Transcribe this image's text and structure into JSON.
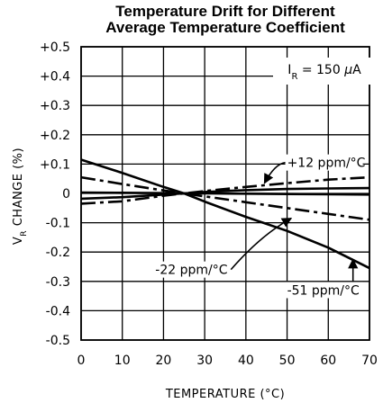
{
  "chart_data": {
    "type": "line",
    "title": [
      "Temperature Drift for Different",
      "Average Temperature Coefficient"
    ],
    "xlabel": "TEMPERATURE (°C)",
    "ylabel": "V_R CHANGE (%)",
    "xlim": [
      0,
      70
    ],
    "ylim": [
      -0.5,
      0.5
    ],
    "x_ticks": [
      0,
      10,
      20,
      30,
      40,
      50,
      60,
      70
    ],
    "y_ticks": [
      0.5,
      0.4,
      0.3,
      0.2,
      0.1,
      0,
      -0.1,
      -0.2,
      -0.3,
      -0.4,
      -0.5
    ],
    "y_tick_labels": [
      "+0.5",
      "+0.4",
      "+0.3",
      "+0.2",
      "+0.1",
      "0",
      "-0.1",
      "-0.2",
      "-0.3",
      "-0.4",
      "-0.5"
    ],
    "grid": true,
    "condition_label": "I_R = 150 μA",
    "series": [
      {
        "name": "+12 ppm/°C",
        "style": "dashdot",
        "x": [
          0,
          10,
          20,
          25,
          30,
          40,
          50,
          60,
          70
        ],
        "y": [
          -0.035,
          -0.027,
          -0.008,
          0.0,
          0.008,
          0.022,
          0.035,
          0.047,
          0.055
        ]
      },
      {
        "style": "solid",
        "x": [
          0,
          10,
          20,
          25,
          30,
          40,
          50,
          60,
          70
        ],
        "y": [
          -0.018,
          -0.013,
          -0.004,
          0.0,
          0.005,
          0.011,
          0.015,
          0.017,
          0.018
        ]
      },
      {
        "style": "solid",
        "x": [
          0,
          10,
          20,
          25,
          30,
          40,
          50,
          60,
          70
        ],
        "y": [
          0.003,
          0.002,
          0.001,
          0.0,
          0.0,
          -0.001,
          -0.002,
          -0.003,
          -0.004
        ]
      },
      {
        "name": "-22 ppm/°C",
        "style": "dashdot",
        "x": [
          0,
          10,
          20,
          25,
          30,
          40,
          50,
          60,
          70
        ],
        "y": [
          0.055,
          0.032,
          0.01,
          0.0,
          -0.01,
          -0.03,
          -0.05,
          -0.07,
          -0.09
        ]
      },
      {
        "name": "-51 ppm/°C",
        "style": "solid",
        "x": [
          0,
          10,
          20,
          25,
          30,
          40,
          50,
          60,
          70
        ],
        "y": [
          0.115,
          0.07,
          0.022,
          0.0,
          -0.028,
          -0.08,
          -0.128,
          -0.185,
          -0.255
        ]
      }
    ],
    "annotations": [
      {
        "text": "+12 ppm/°C",
        "x": 50,
        "y": 0.09,
        "arrow_to": [
          44.5,
          0.035
        ]
      },
      {
        "text": "-22 ppm/°C",
        "x": 18,
        "y": -0.275,
        "arrow_to": [
          51,
          -0.085
        ]
      },
      {
        "text": "-51 ppm/°C",
        "x": 50,
        "y": -0.345,
        "arrow_to": [
          66,
          -0.225
        ]
      }
    ]
  }
}
